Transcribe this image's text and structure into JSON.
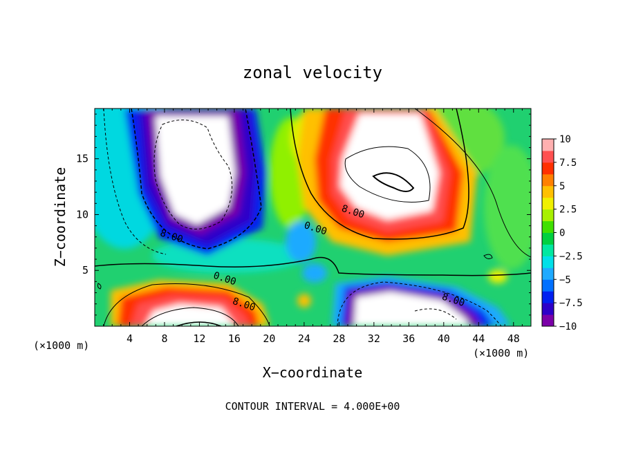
{
  "chart_data": {
    "type": "heatmap",
    "title": "zonal velocity",
    "xlabel": "X−coordinate",
    "ylabel": "Z−coordinate",
    "x_unit": "(×1000 m)",
    "z_unit": "(×1000 m)",
    "footer": "CONTOUR INTERVAL = 4.000E+00",
    "xlim": [
      0,
      50
    ],
    "ylim": [
      0,
      19.5
    ],
    "x_ticks": [
      4,
      8,
      12,
      16,
      20,
      24,
      28,
      32,
      36,
      40,
      44,
      48
    ],
    "x_tick_labels": [
      "4",
      "8",
      "12",
      "16",
      "20",
      "24",
      "28",
      "32",
      "36",
      "40",
      "44",
      "48"
    ],
    "y_ticks": [
      5,
      10,
      15
    ],
    "y_tick_labels": [
      "5",
      "10",
      "15"
    ],
    "colorbar": {
      "range": [
        -10,
        10
      ],
      "ticks": [
        10,
        7.5,
        5,
        2.5,
        0,
        -2.5,
        -5,
        -7.5,
        -10
      ],
      "tick_labels": [
        "10",
        "7.5",
        "5",
        "2.5",
        "0",
        "−2.5",
        "−5",
        "−7.5",
        "−10"
      ],
      "colors": [
        "#7b00a8",
        "#2d00c8",
        "#0020f0",
        "#0070ff",
        "#1eaaff",
        "#00e0e8",
        "#00e8a0",
        "#00d040",
        "#40e000",
        "#a8f000",
        "#f0f000",
        "#ffc000",
        "#ff8000",
        "#ff3000",
        "#ff5050",
        "#ffb0b0"
      ]
    },
    "contour_labels": [
      {
        "text": "8.00",
        "x": 8.7,
        "z": 7.8
      },
      {
        "text": "8.00",
        "x": 29.5,
        "z": 10.0
      },
      {
        "text": "0.00",
        "x": 25.2,
        "z": 8.5
      },
      {
        "text": "0.00",
        "x": 14.8,
        "z": 4.0
      },
      {
        "text": "8.00",
        "x": 17.0,
        "z": 1.7
      },
      {
        "text": "8.00",
        "x": 41.0,
        "z": 2.1
      }
    ],
    "features": [
      {
        "kind": "negative-core",
        "x": 11,
        "z": 15,
        "peak": -16
      },
      {
        "kind": "positive-core",
        "x": 34,
        "z": 13.5,
        "peak": 14
      },
      {
        "kind": "positive-core",
        "x": 12,
        "z": 1.5,
        "peak": 12
      },
      {
        "kind": "negative-core",
        "x": 37,
        "z": 1.6,
        "peak": -13
      },
      {
        "kind": "negative-patch",
        "x": 23.5,
        "z": 7.5,
        "peak": -4
      }
    ]
  }
}
